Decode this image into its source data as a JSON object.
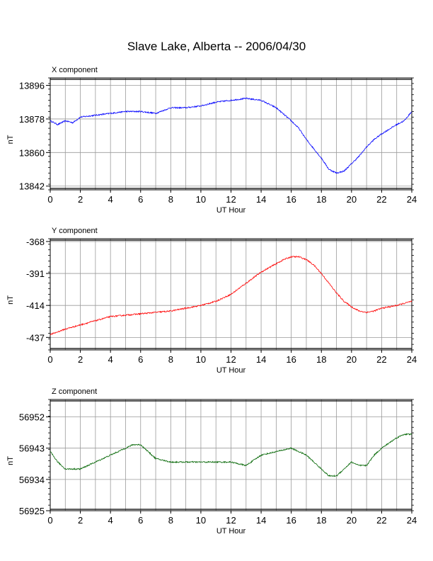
{
  "title": "Slave Lake, Alberta -- 2006/04/30",
  "chart_data": [
    {
      "type": "line",
      "panel_label": "X component",
      "xlabel": "UT Hour",
      "ylabel": "nT",
      "xlim": [
        0,
        24
      ],
      "ylim": [
        13840,
        13900
      ],
      "x_ticks": [
        0,
        2,
        4,
        6,
        8,
        10,
        12,
        14,
        16,
        18,
        20,
        22,
        24
      ],
      "y_ticks": [
        13842,
        13860,
        13878,
        13896
      ],
      "grid": true,
      "color": "#0000ff",
      "x": [
        0,
        0.5,
        1,
        1.5,
        2,
        3,
        4,
        5,
        6,
        7,
        8,
        9,
        10,
        11,
        12,
        13,
        14,
        14.5,
        15,
        16,
        16.5,
        17,
        17.5,
        18,
        18.5,
        19,
        19.5,
        20,
        20.5,
        21,
        21.5,
        22,
        23,
        23.5,
        24
      ],
      "y": [
        13877,
        13875,
        13877,
        13876,
        13879,
        13880,
        13881,
        13882,
        13882,
        13881,
        13884,
        13884,
        13885,
        13887,
        13888,
        13889,
        13888,
        13886,
        13884,
        13877,
        13873,
        13867,
        13862,
        13857,
        13851,
        13849,
        13850,
        13854,
        13858,
        13863,
        13867,
        13870,
        13875,
        13877,
        13882
      ]
    },
    {
      "type": "line",
      "panel_label": "Y component",
      "xlabel": "UT Hour",
      "ylabel": "nT",
      "xlim": [
        0,
        24
      ],
      "ylim": [
        -446,
        -366
      ],
      "x_ticks": [
        0,
        2,
        4,
        6,
        8,
        10,
        12,
        14,
        16,
        18,
        20,
        22,
        24
      ],
      "y_ticks": [
        -368,
        -391,
        -414,
        -437
      ],
      "grid": true,
      "color": "#ff0000",
      "x": [
        0,
        0.5,
        1,
        2,
        3,
        4,
        5,
        6,
        7,
        8,
        9,
        10,
        11,
        12,
        13,
        14,
        15,
        15.5,
        16,
        16.5,
        17,
        17.5,
        18,
        18.5,
        19,
        19.5,
        20,
        20.5,
        21,
        21.5,
        22,
        23,
        24
      ],
      "y": [
        -435,
        -433,
        -431,
        -428,
        -425,
        -422,
        -421,
        -420,
        -419,
        -418,
        -416,
        -414,
        -411,
        -406,
        -398,
        -390,
        -384,
        -381,
        -379,
        -379,
        -381,
        -385,
        -391,
        -398,
        -405,
        -411,
        -415,
        -418,
        -419,
        -418,
        -416,
        -414,
        -411
      ]
    },
    {
      "type": "line",
      "panel_label": "Z component",
      "xlabel": "UT Hour",
      "ylabel": "nT",
      "xlim": [
        0,
        24
      ],
      "ylim": [
        56925,
        56957
      ],
      "x_ticks": [
        0,
        2,
        4,
        6,
        8,
        10,
        12,
        14,
        16,
        18,
        20,
        22,
        24
      ],
      "y_ticks": [
        56925,
        56934,
        56943,
        56952
      ],
      "grid": true,
      "color": "#006400",
      "x": [
        0,
        0.5,
        1,
        1.5,
        2,
        2.5,
        3,
        4,
        5,
        5.5,
        6,
        6.5,
        7,
        8,
        9,
        10,
        11,
        12,
        13,
        14,
        15,
        16,
        17,
        17.5,
        18,
        18.5,
        19,
        19.5,
        20,
        20.5,
        21,
        21.5,
        22,
        23,
        23.5,
        24
      ],
      "y": [
        56942,
        56939,
        56937,
        56937,
        56937,
        56938,
        56939,
        56941,
        56943,
        56944,
        56944,
        56942,
        56940,
        56939,
        56939,
        56939,
        56939,
        56939,
        56938,
        56941,
        56942,
        56943,
        56941,
        56939,
        56937,
        56935,
        56935,
        56937,
        56939,
        56938,
        56938,
        56941,
        56943,
        56946,
        56947,
        56947
      ]
    }
  ]
}
